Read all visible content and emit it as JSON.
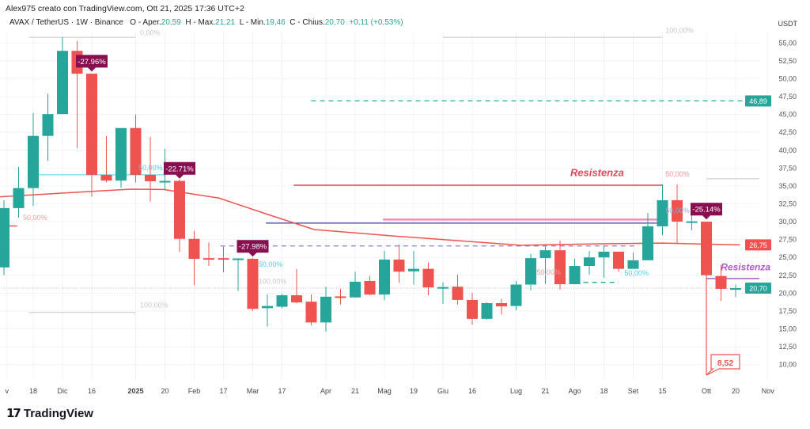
{
  "header": {
    "credit": "Alex975 creato con TradingView.com, Ott 21, 2025 17:36 UTC+2",
    "symbol": "AVAX / TetherUS · 1W · Binance",
    "open_label": "O - Aper.",
    "open": "20,59",
    "high_label": "H - Max.",
    "high": "21,21",
    "low_label": "L - Min.",
    "low": "19,46",
    "close_label": "C - Chius.",
    "close": "20,70",
    "change": "+0,11 (+0,53%)"
  },
  "logo": {
    "text": "TradingView",
    "mark": "TV"
  },
  "colors": {
    "up": "#26a69a",
    "down": "#ef5350",
    "ma": "#ef5350",
    "callout": "#880e4f",
    "resistance_red": "#e0475b",
    "resistance_purple": "#b05cc8",
    "navy": "#3f3fa0",
    "grid": "#f0f3fa"
  },
  "chart_data": {
    "type": "candlestick",
    "currency": "USDT",
    "ylim": [
      7.5,
      58
    ],
    "y_ticks": [
      "55,00",
      "52,50",
      "50,00",
      "47,50",
      "45,00",
      "42,50",
      "40,00",
      "37,50",
      "35,00",
      "32,50",
      "30,00",
      "27,50",
      "25,00",
      "22,50",
      "20,00",
      "17,50",
      "15,00",
      "12,50",
      "10,00"
    ],
    "y_tick_values": [
      55,
      52.5,
      50,
      47.5,
      45,
      42.5,
      40,
      37.5,
      35,
      32.5,
      30,
      27.5,
      25,
      22.5,
      20,
      17.5,
      15,
      12.5,
      10
    ],
    "x_ticks": [
      {
        "label": "v",
        "at": 0.2
      },
      {
        "label": "18",
        "at": 2
      },
      {
        "label": "Dic",
        "at": 4
      },
      {
        "label": "16",
        "at": 6
      },
      {
        "label": "2025",
        "at": 9,
        "bold": true
      },
      {
        "label": "20",
        "at": 11
      },
      {
        "label": "Feb",
        "at": 13
      },
      {
        "label": "17",
        "at": 15
      },
      {
        "label": "Mar",
        "at": 17
      },
      {
        "label": "17",
        "at": 19
      },
      {
        "label": "Apr",
        "at": 22
      },
      {
        "label": "21",
        "at": 24
      },
      {
        "label": "Mag",
        "at": 26
      },
      {
        "label": "19",
        "at": 28
      },
      {
        "label": "Giu",
        "at": 30
      },
      {
        "label": "16",
        "at": 32
      },
      {
        "label": "Lug",
        "at": 35
      },
      {
        "label": "21",
        "at": 37
      },
      {
        "label": "Ago",
        "at": 39
      },
      {
        "label": "18",
        "at": 41
      },
      {
        "label": "Set",
        "at": 43
      },
      {
        "label": "15",
        "at": 45
      },
      {
        "label": "Ott",
        "at": 48
      },
      {
        "label": "20",
        "at": 50
      },
      {
        "label": "Nov",
        "at": 52.2
      }
    ],
    "candles": [
      [
        23.6,
        31.9,
        33.0,
        22.5
      ],
      [
        31.9,
        34.7,
        37.65,
        30.55
      ],
      [
        34.7,
        42.0,
        45.2,
        32.2
      ],
      [
        42.0,
        45.05,
        47.9,
        38.5
      ],
      [
        45.05,
        53.9,
        55.8,
        45.05
      ],
      [
        53.9,
        50.7,
        55.25,
        40.3
      ],
      [
        50.7,
        36.55,
        50.7,
        33.5
      ],
      [
        36.55,
        35.75,
        42.0,
        35.5
      ],
      [
        35.75,
        43.1,
        43.1,
        34.75
      ],
      [
        43.1,
        36.55,
        45.0,
        35.5
      ],
      [
        36.55,
        35.65,
        41.85,
        32.8
      ],
      [
        35.6,
        35.7,
        40.2,
        34.4
      ],
      [
        35.7,
        27.6,
        35.9,
        25.8
      ],
      [
        27.6,
        24.8,
        28.7,
        21.1
      ],
      [
        24.9,
        24.8,
        27.1,
        23.8
      ],
      [
        24.9,
        24.8,
        26.5,
        22.9
      ],
      [
        24.75,
        24.85,
        24.9,
        20.3
      ],
      [
        24.8,
        17.8,
        24.9,
        17.5
      ],
      [
        17.9,
        18.2,
        19.8,
        15.3
      ],
      [
        18.1,
        19.7,
        19.9,
        17.9
      ],
      [
        19.7,
        18.7,
        23.35,
        18.6
      ],
      [
        18.8,
        15.9,
        19.8,
        15.5
      ],
      [
        15.9,
        19.5,
        20.9,
        14.6
      ],
      [
        19.55,
        19.45,
        20.6,
        18.4
      ],
      [
        19.4,
        21.6,
        23.0,
        19.4
      ],
      [
        21.7,
        19.8,
        22.4,
        19.7
      ],
      [
        19.8,
        24.7,
        25.9,
        19.0
      ],
      [
        24.7,
        23.0,
        26.8,
        21.45
      ],
      [
        23.05,
        23.4,
        25.9,
        21.2
      ],
      [
        23.4,
        20.8,
        24.3,
        19.7
      ],
      [
        20.75,
        20.85,
        21.5,
        18.5
      ],
      [
        20.9,
        19.05,
        22.6,
        18.4
      ],
      [
        19.05,
        16.4,
        20.05,
        15.6
      ],
      [
        16.4,
        18.6,
        18.7,
        16.3
      ],
      [
        18.6,
        18.15,
        19.2,
        17.0
      ],
      [
        18.2,
        21.2,
        21.7,
        17.6
      ],
      [
        21.2,
        24.9,
        25.5,
        20.4
      ],
      [
        24.9,
        26.0,
        26.5,
        21.3
      ],
      [
        26.0,
        21.25,
        27.35,
        20.5
      ],
      [
        21.25,
        23.8,
        24.8,
        21.25
      ],
      [
        23.8,
        25.0,
        25.9,
        22.6
      ],
      [
        25.0,
        25.8,
        26.7,
        22.15
      ],
      [
        25.8,
        23.4,
        25.8,
        23.0
      ],
      [
        23.4,
        24.6,
        25.7,
        23.4
      ],
      [
        24.6,
        29.35,
        31.2,
        24.6
      ],
      [
        29.35,
        33.0,
        35.2,
        28.1
      ],
      [
        33.0,
        30.0,
        35.2,
        27.0
      ],
      [
        29.95,
        30.05,
        31.5,
        28.8
      ],
      [
        30.0,
        22.5,
        30.0,
        8.52
      ],
      [
        22.4,
        20.6,
        23.95,
        18.9
      ],
      [
        20.59,
        20.7,
        21.21,
        19.46
      ]
    ],
    "moving_average": [
      [
        -0.5,
        33.45
      ],
      [
        6.5,
        34.3
      ],
      [
        8.7,
        34.55
      ],
      [
        10.9,
        34.5
      ],
      [
        14.7,
        33.3
      ],
      [
        17.9,
        31.1
      ],
      [
        21.2,
        28.9
      ],
      [
        26.6,
        28.0
      ],
      [
        32,
        27.2
      ],
      [
        35.3,
        26.7
      ],
      [
        40.7,
        26.9
      ],
      [
        45,
        27.0
      ],
      [
        50.3,
        26.75
      ]
    ],
    "price_labels": [
      {
        "text": "46,89",
        "value": 46.89,
        "color": "#26a69a"
      },
      {
        "text": "26,75",
        "value": 26.75,
        "color": "#ef5350"
      },
      {
        "text": "20,70",
        "value": 20.7,
        "color": "#26a69a"
      }
    ],
    "lines": [
      {
        "name": "resistance-line-red",
        "price": 35.1,
        "from": 19.8,
        "to": 45,
        "color": "#e0475b",
        "dash": false,
        "width": 1.5
      },
      {
        "name": "resistance-line-purple",
        "price": 22.05,
        "from": 48,
        "to": 52.5,
        "color": "#b05cc8",
        "dash": false,
        "width": 1.5
      },
      {
        "name": "navy-level-line",
        "price": 29.8,
        "from": 17.9,
        "to": 44.7,
        "color": "#3f3fa0",
        "dash": false,
        "width": 1.3
      },
      {
        "name": "pink-level-line",
        "price": 30.3,
        "from": 25.9,
        "to": 44.7,
        "color": "#f48fb1",
        "dash": false,
        "width": 2.5
      },
      {
        "name": "purple-dashed-line",
        "price": 26.6,
        "from": 14.8,
        "to": 43.3,
        "color": "#8c7ec4",
        "dash": true,
        "width": 1.3
      },
      {
        "name": "green-dashed-line",
        "price": 46.89,
        "from": 21,
        "to": 52.5,
        "color": "#26a69a",
        "dash": true,
        "width": 1.3
      },
      {
        "name": "fib-0-line",
        "price": 55.8,
        "from": 1.7,
        "to": 9,
        "color": "#c8c8c8",
        "dash": false,
        "width": 1
      },
      {
        "name": "fib-100-line",
        "price": 17.3,
        "from": 1.7,
        "to": 9,
        "color": "#c8c8c8",
        "dash": false,
        "width": 1
      },
      {
        "name": "fib-50-line",
        "price": 36.55,
        "from": 2.2,
        "to": 11,
        "color": "#4dd0e1",
        "dash": false,
        "width": 1
      },
      {
        "name": "fib-top-100-line",
        "price": 55.8,
        "from": 30,
        "to": 45,
        "color": "#c8c8c8",
        "dash": false,
        "width": 1
      },
      {
        "name": "fib-right-line",
        "price": 36.0,
        "from": 48,
        "to": 52.5,
        "color": "#c8c8c8",
        "dash": false,
        "width": 1
      },
      {
        "name": "cyan-dashed-line",
        "price": 21.5,
        "from": 39.6,
        "to": 42,
        "color": "#26a69a",
        "dash": true,
        "width": 1.3
      },
      {
        "name": "red-short-line",
        "price": 29.4,
        "from": 0.2,
        "to": 0.9,
        "color": "#ef5350",
        "dash": false,
        "width": 1.5
      },
      {
        "name": "current-price-line",
        "price": 20.7,
        "from": -0.5,
        "to": 52.5,
        "color": "#9aa6b5",
        "dash": true,
        "width": 0.8
      }
    ],
    "text_labels": [
      {
        "text": "Resistenza",
        "at": [
          38.7,
          36.4
        ],
        "color": "#e0475b",
        "size": 13,
        "style": "bold-italic"
      },
      {
        "text": "Resistenza",
        "at": [
          49.3,
          23.2
        ],
        "color": "#b05cc8",
        "size": 12,
        "style": "bold-italic"
      },
      {
        "text": "0,00%",
        "at": [
          9.3,
          56.1
        ],
        "color": "#c8c8c8",
        "size": 9
      },
      {
        "text": "50,00%",
        "at": [
          9.3,
          37.2
        ],
        "color": "#4dd0e1",
        "size": 9
      },
      {
        "text": "100,00%",
        "at": [
          9.3,
          18.0
        ],
        "color": "#c8c8c8",
        "size": 9
      },
      {
        "text": "50,00%",
        "at": [
          1.3,
          30.2
        ],
        "color": "#ef9a9a",
        "size": 9
      },
      {
        "text": "50,00%",
        "at": [
          17.4,
          23.7
        ],
        "color": "#4dd0e1",
        "size": 9
      },
      {
        "text": "100,00%",
        "at": [
          17.4,
          21.3
        ],
        "color": "#c8c8c8",
        "size": 9
      },
      {
        "text": "100,00%",
        "at": [
          45.2,
          56.4
        ],
        "color": "#c8c8c8",
        "size": 9
      },
      {
        "text": "50,00%",
        "at": [
          45.2,
          36.3
        ],
        "color": "#ef9a9a",
        "size": 9
      },
      {
        "text": "50,00%",
        "at": [
          45.2,
          31.2
        ],
        "color": "#9fa8da",
        "size": 9
      },
      {
        "text": "50,00%",
        "at": [
          36.4,
          22.6
        ],
        "color": "#ef9a9a",
        "size": 9
      },
      {
        "text": "50,00%",
        "at": [
          42.4,
          22.5
        ],
        "color": "#4dd0e1",
        "size": 9
      }
    ],
    "callouts": [
      {
        "text": "-27.96%",
        "at": [
          6,
          50.9
        ]
      },
      {
        "text": "-22.71%",
        "at": [
          12,
          35.9
        ]
      },
      {
        "text": "-27.98%",
        "at": [
          17,
          25.0
        ]
      },
      {
        "text": "-25.14%",
        "at": [
          48,
          30.2
        ]
      }
    ],
    "low_marker": {
      "text": "8,52",
      "at": [
        48,
        8.52
      ]
    }
  }
}
